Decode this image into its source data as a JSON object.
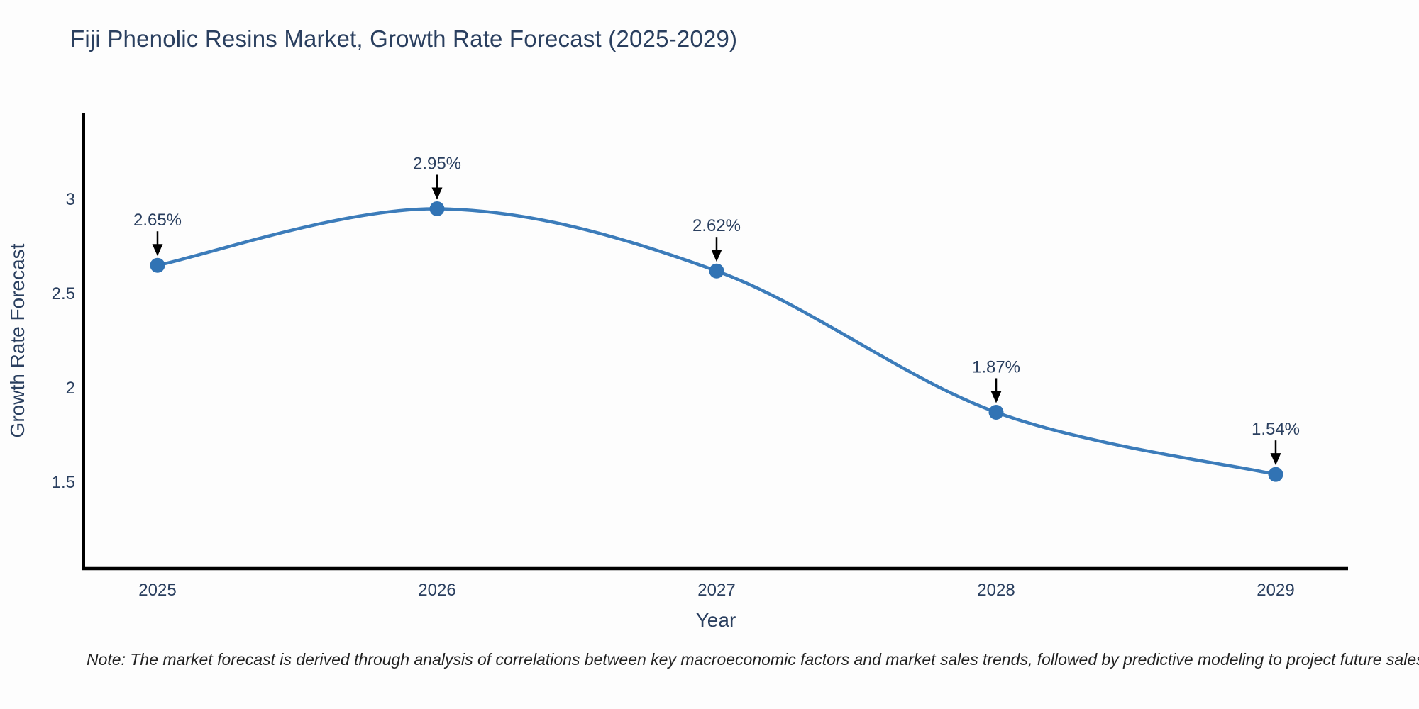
{
  "header": {
    "title": "Fiji Phenolic Resins Market, Growth Rate Forecast (2025-2029)"
  },
  "chart_data": {
    "type": "line",
    "title": "Fiji Phenolic Resins Market, Growth Rate Forecast (2025-2029)",
    "x": [
      2025,
      2026,
      2027,
      2028,
      2029
    ],
    "series": [
      {
        "name": "Growth Rate Forecast",
        "values": [
          2.65,
          2.95,
          2.62,
          1.87,
          1.54
        ]
      }
    ],
    "point_labels": [
      "2.65%",
      "2.95%",
      "2.62%",
      "1.87%",
      "1.54%"
    ],
    "xlabel": "Year",
    "ylabel": "Growth Rate Forecast",
    "yticks": [
      1.5,
      2,
      2.5,
      3
    ],
    "ylim": [
      1.04,
      3.46
    ],
    "grid": false,
    "legend": "none",
    "line_shape": "spline",
    "marker_style": "circle",
    "annotation_style": "arrow-down",
    "colors": {
      "line": "#3c7cba",
      "marker": "#3173b4",
      "axis": "#000000",
      "text": "#2a3f5f",
      "arrow": "#000000",
      "note_text": "#222222"
    }
  },
  "footer": {
    "note": "Note: The market forecast is derived through analysis of correlations between key macroeconomic factors and market sales trends, followed by predictive modeling to project future sales"
  }
}
